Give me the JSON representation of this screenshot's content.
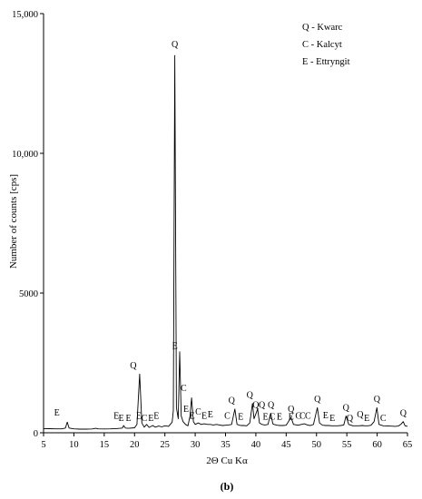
{
  "chart_data": {
    "type": "line",
    "xlabel": "2Θ Cu Kα",
    "ylabel": "Number of counts [cps]",
    "caption": "(b)",
    "xlim": [
      5,
      65
    ],
    "ylim": [
      0,
      15000
    ],
    "x_ticks": [
      5,
      10,
      15,
      20,
      25,
      30,
      35,
      40,
      45,
      50,
      55,
      60,
      65
    ],
    "y_ticks": [
      {
        "value": 0,
        "label": "0"
      },
      {
        "value": 5000,
        "label": "5000"
      },
      {
        "value": 10000,
        "label": "10,000"
      },
      {
        "value": 15000,
        "label": "15,000"
      }
    ],
    "legend": {
      "placement": "top-right",
      "entries": [
        "Q - Kwarc",
        "C - Kalcyt",
        "E - Ettryngit"
      ]
    },
    "series": [
      {
        "values": [
          [
            5,
            150
          ],
          [
            6,
            145
          ],
          [
            7,
            140
          ],
          [
            8,
            140
          ],
          [
            8.6,
            170
          ],
          [
            8.9,
            380
          ],
          [
            9.2,
            170
          ],
          [
            10,
            140
          ],
          [
            11,
            130
          ],
          [
            12,
            130
          ],
          [
            13,
            135
          ],
          [
            13.6,
            160
          ],
          [
            14,
            140
          ],
          [
            15,
            135
          ],
          [
            16,
            140
          ],
          [
            17,
            150
          ],
          [
            18,
            170
          ],
          [
            18.2,
            260
          ],
          [
            18.5,
            170
          ],
          [
            19,
            160
          ],
          [
            20,
            180
          ],
          [
            20.4,
            300
          ],
          [
            20.85,
            2100
          ],
          [
            21.2,
            350
          ],
          [
            21.6,
            200
          ],
          [
            22,
            300
          ],
          [
            22.4,
            190
          ],
          [
            23,
            260
          ],
          [
            23.4,
            200
          ],
          [
            24,
            240
          ],
          [
            24.5,
            210
          ],
          [
            25,
            250
          ],
          [
            25.6,
            230
          ],
          [
            26.2,
            380
          ],
          [
            26.4,
            800
          ],
          [
            26.64,
            13500
          ],
          [
            26.9,
            900
          ],
          [
            27.2,
            500
          ],
          [
            27.45,
            2900
          ],
          [
            27.7,
            600
          ],
          [
            28,
            400
          ],
          [
            28.4,
            300
          ],
          [
            28.8,
            250
          ],
          [
            29.15,
            600
          ],
          [
            29.4,
            1250
          ],
          [
            29.7,
            400
          ],
          [
            30,
            300
          ],
          [
            30.5,
            350
          ],
          [
            31,
            300
          ],
          [
            31.5,
            320
          ],
          [
            32,
            300
          ],
          [
            32.5,
            300
          ],
          [
            33,
            280
          ],
          [
            33.5,
            300
          ],
          [
            34,
            280
          ],
          [
            34.5,
            260
          ],
          [
            35,
            270
          ],
          [
            35.5,
            280
          ],
          [
            36,
            300
          ],
          [
            36.54,
            850
          ],
          [
            36.9,
            300
          ],
          [
            37.5,
            260
          ],
          [
            38,
            260
          ],
          [
            38.5,
            250
          ],
          [
            39,
            350
          ],
          [
            39.45,
            1050
          ],
          [
            39.7,
            500
          ],
          [
            40.3,
            850
          ],
          [
            40.6,
            350
          ],
          [
            41,
            300
          ],
          [
            41.5,
            280
          ],
          [
            42,
            300
          ],
          [
            42.45,
            700
          ],
          [
            42.8,
            320
          ],
          [
            43,
            300
          ],
          [
            43.5,
            270
          ],
          [
            44,
            260
          ],
          [
            44.5,
            260
          ],
          [
            45,
            270
          ],
          [
            45.8,
            550
          ],
          [
            46.2,
            300
          ],
          [
            47,
            270
          ],
          [
            47.5,
            300
          ],
          [
            48,
            320
          ],
          [
            48.5,
            280
          ],
          [
            49,
            260
          ],
          [
            49.5,
            300
          ],
          [
            50.14,
            900
          ],
          [
            50.5,
            350
          ],
          [
            51,
            270
          ],
          [
            51.5,
            260
          ],
          [
            52,
            260
          ],
          [
            52.5,
            250
          ],
          [
            53,
            250
          ],
          [
            53.5,
            250
          ],
          [
            54,
            260
          ],
          [
            54.5,
            280
          ],
          [
            54.87,
            600
          ],
          [
            55.3,
            300
          ],
          [
            56,
            250
          ],
          [
            56.5,
            250
          ],
          [
            57,
            250
          ],
          [
            57.5,
            260
          ],
          [
            58,
            250
          ],
          [
            58.5,
            250
          ],
          [
            59,
            270
          ],
          [
            59.5,
            400
          ],
          [
            59.96,
            900
          ],
          [
            60.3,
            300
          ],
          [
            61,
            250
          ],
          [
            62,
            240
          ],
          [
            63,
            230
          ],
          [
            63.5,
            240
          ],
          [
            64,
            320
          ],
          [
            64.3,
            400
          ],
          [
            64.6,
            250
          ],
          [
            65,
            230
          ]
        ]
      }
    ],
    "annotations": [
      {
        "text": "E",
        "x": 7.2,
        "y": 520
      },
      {
        "text": "E",
        "x": 17.0,
        "y": 400
      },
      {
        "text": "E",
        "x": 17.8,
        "y": 330
      },
      {
        "text": "E",
        "x": 19.0,
        "y": 330
      },
      {
        "text": "Q",
        "x": 19.8,
        "y": 2200
      },
      {
        "text": "E",
        "x": 20.7,
        "y": 400
      },
      {
        "text": "C",
        "x": 21.6,
        "y": 330
      },
      {
        "text": "E",
        "x": 22.7,
        "y": 330
      },
      {
        "text": "E",
        "x": 23.6,
        "y": 400
      },
      {
        "text": "Q",
        "x": 26.64,
        "y": 13700
      },
      {
        "text": "E",
        "x": 26.64,
        "y": 2900
      },
      {
        "text": "C",
        "x": 28.1,
        "y": 1400
      },
      {
        "text": "E",
        "x": 28.5,
        "y": 650
      },
      {
        "text": "E",
        "x": 29.5,
        "y": 400
      },
      {
        "text": "C",
        "x": 30.5,
        "y": 550
      },
      {
        "text": "E",
        "x": 31.5,
        "y": 400
      },
      {
        "text": "E",
        "x": 32.5,
        "y": 450
      },
      {
        "text": "C",
        "x": 35.3,
        "y": 400
      },
      {
        "text": "Q",
        "x": 36.0,
        "y": 950
      },
      {
        "text": "E",
        "x": 37.5,
        "y": 380
      },
      {
        "text": "Q",
        "x": 39.0,
        "y": 1150
      },
      {
        "text": "Q",
        "x": 40.0,
        "y": 800
      },
      {
        "text": "Q",
        "x": 41.0,
        "y": 800
      },
      {
        "text": "E",
        "x": 41.6,
        "y": 380
      },
      {
        "text": "Q",
        "x": 42.5,
        "y": 800
      },
      {
        "text": "C",
        "x": 42.7,
        "y": 380
      },
      {
        "text": "E",
        "x": 43.9,
        "y": 380
      },
      {
        "text": "Q",
        "x": 45.8,
        "y": 650
      },
      {
        "text": "E",
        "x": 45.8,
        "y": 380
      },
      {
        "text": "C",
        "x": 47.0,
        "y": 400
      },
      {
        "text": "C",
        "x": 47.7,
        "y": 400
      },
      {
        "text": "C",
        "x": 48.6,
        "y": 400
      },
      {
        "text": "Q",
        "x": 50.14,
        "y": 1000
      },
      {
        "text": "E",
        "x": 51.5,
        "y": 430
      },
      {
        "text": "E",
        "x": 52.6,
        "y": 330
      },
      {
        "text": "Q",
        "x": 54.87,
        "y": 700
      },
      {
        "text": "Q",
        "x": 55.5,
        "y": 330
      },
      {
        "text": "Q",
        "x": 57.2,
        "y": 450
      },
      {
        "text": "E",
        "x": 58.3,
        "y": 330
      },
      {
        "text": "Q",
        "x": 59.96,
        "y": 1000
      },
      {
        "text": "C",
        "x": 61.0,
        "y": 330
      },
      {
        "text": "Q",
        "x": 64.3,
        "y": 500
      }
    ]
  }
}
